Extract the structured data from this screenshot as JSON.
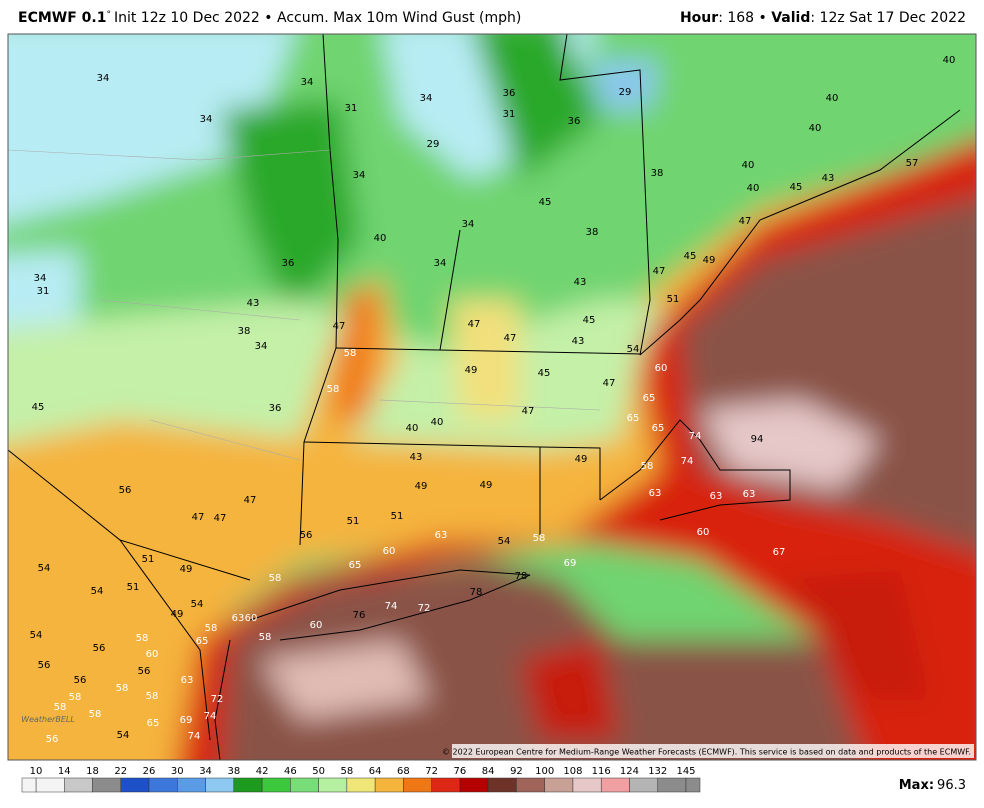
{
  "header": {
    "model": "ECMWF 0.1",
    "degree": "°",
    "init": "Init 12z 10 Dec 2022 • Accum. Max 10m Wind Gust (mph)",
    "hour_label": "Hour",
    "hour": ": 168 • ",
    "valid_label": "Valid",
    "valid": ": 12z Sat 17 Dec 2022"
  },
  "map_labels": [
    34,
    34,
    31,
    34,
    36,
    31,
    36,
    29,
    40,
    40,
    40,
    34,
    29,
    34,
    38,
    40,
    40,
    45,
    43,
    57,
    45,
    38,
    34,
    40,
    47,
    34,
    36,
    45,
    49,
    34,
    31,
    43,
    47,
    51,
    43,
    38,
    47,
    47,
    47,
    45,
    43,
    34,
    58,
    54,
    49,
    45,
    60,
    58,
    47,
    45,
    36,
    65,
    47,
    65,
    40,
    40,
    65,
    74,
    94,
    43,
    49,
    74,
    58,
    56,
    49,
    49,
    63,
    63,
    63,
    47,
    47,
    47,
    51,
    51,
    63,
    56,
    54,
    58,
    60,
    60,
    67,
    51,
    69,
    49,
    54,
    65,
    58,
    78,
    51,
    54,
    49,
    54,
    74,
    72,
    78,
    76,
    60,
    63,
    60,
    58,
    58,
    54,
    58,
    65,
    56,
    60,
    56,
    56,
    63,
    56,
    58,
    58,
    58,
    72,
    58,
    58,
    74,
    69,
    65,
    54,
    74,
    56
  ],
  "copyright": "© 2022 European Centre for Medium-Range Weather Forecasts (ECMWF). This service is based on data and products of the ECMWF.",
  "logo": "WeatherBELL",
  "colorbar": {
    "ticks": [
      10,
      14,
      18,
      22,
      26,
      30,
      34,
      38,
      42,
      46,
      50,
      58,
      64,
      68,
      72,
      76,
      84,
      92,
      100,
      108,
      116,
      124,
      132,
      145
    ],
    "colors": [
      "#f4f4f4",
      "#c8c8c8",
      "#8c8c8c",
      "#1e50c8",
      "#3c78dc",
      "#5a9be6",
      "#8cc8f0",
      "#1e9a1e",
      "#3cc83c",
      "#78dc78",
      "#b4f0a0",
      "#f0e678",
      "#f5b43c",
      "#f07814",
      "#dc2814",
      "#b40000",
      "#6e3228",
      "#a0645a",
      "#c8a096",
      "#e6c8c8",
      "#f0a0a0",
      "#b4b4b4",
      "#8c8c8c"
    ]
  },
  "max_label": "Max:",
  "max": 96.3
}
